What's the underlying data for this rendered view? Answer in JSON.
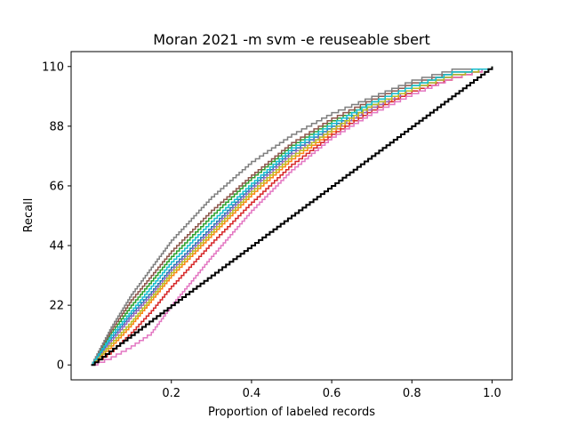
{
  "chart_data": {
    "type": "line",
    "title": "Moran 2021 -m svm -e reuseable sbert",
    "xlabel": "Proportion of labeled records",
    "ylabel": "Recall",
    "xlim": [
      -0.05,
      1.05
    ],
    "ylim": [
      -5.5,
      115.5
    ],
    "x_ticks": [
      0.2,
      0.4,
      0.6,
      0.8,
      1.0
    ],
    "x_tick_labels": [
      "0.2",
      "0.4",
      "0.6",
      "0.8",
      "1.0"
    ],
    "y_ticks": [
      0,
      22,
      44,
      66,
      88,
      110
    ],
    "y_tick_labels": [
      "0",
      "22",
      "44",
      "66",
      "88",
      "110"
    ],
    "grid": false,
    "legend": "none",
    "total_relevant": 110,
    "random_baseline": {
      "color": "#000000",
      "x": [
        0.0,
        0.1,
        0.2,
        0.3,
        0.4,
        0.5,
        0.6,
        0.7,
        0.8,
        0.9,
        1.0
      ],
      "y": [
        0,
        11,
        22,
        33,
        44,
        55,
        66,
        77,
        88,
        99,
        110
      ]
    },
    "series": [
      {
        "color": "#1f77b4",
        "x": [
          0,
          0.05,
          0.1,
          0.15,
          0.2,
          0.3,
          0.4,
          0.5,
          0.6,
          0.7,
          0.8,
          0.9,
          1.0
        ],
        "y": [
          0,
          10,
          19,
          27,
          36,
          51,
          66,
          79,
          88,
          96,
          102,
          107,
          110
        ]
      },
      {
        "color": "#ff7f0e",
        "x": [
          0,
          0.05,
          0.1,
          0.15,
          0.2,
          0.3,
          0.4,
          0.5,
          0.6,
          0.7,
          0.8,
          0.9,
          1.0
        ],
        "y": [
          0,
          7,
          15,
          24,
          33,
          48,
          63,
          76,
          86,
          95,
          101,
          106,
          110
        ]
      },
      {
        "color": "#2ca02c",
        "x": [
          0,
          0.05,
          0.1,
          0.15,
          0.2,
          0.3,
          0.4,
          0.5,
          0.6,
          0.7,
          0.8,
          0.9,
          1.0
        ],
        "y": [
          0,
          12,
          22,
          31,
          40,
          55,
          69,
          81,
          90,
          97,
          103,
          108,
          110
        ]
      },
      {
        "color": "#d62728",
        "x": [
          0,
          0.05,
          0.1,
          0.15,
          0.2,
          0.3,
          0.4,
          0.5,
          0.6,
          0.7,
          0.8,
          0.9,
          1.0
        ],
        "y": [
          0,
          5,
          12,
          20,
          29,
          45,
          60,
          74,
          85,
          94,
          101,
          106,
          110
        ]
      },
      {
        "color": "#9467bd",
        "x": [
          0,
          0.05,
          0.1,
          0.15,
          0.2,
          0.3,
          0.4,
          0.5,
          0.6,
          0.7,
          0.8,
          0.9,
          1.0
        ],
        "y": [
          0,
          9,
          18,
          26,
          35,
          50,
          65,
          78,
          87,
          95,
          102,
          107,
          110
        ]
      },
      {
        "color": "#8c564b",
        "x": [
          0,
          0.05,
          0.1,
          0.15,
          0.2,
          0.3,
          0.4,
          0.5,
          0.6,
          0.7,
          0.8,
          0.9,
          1.0
        ],
        "y": [
          0,
          13,
          24,
          33,
          42,
          57,
          70,
          82,
          91,
          98,
          104,
          108,
          110
        ]
      },
      {
        "color": "#e377c2",
        "x": [
          0,
          0.05,
          0.1,
          0.15,
          0.2,
          0.3,
          0.4,
          0.5,
          0.6,
          0.7,
          0.8,
          0.9,
          1.0
        ],
        "y": [
          0,
          3,
          7,
          12,
          22,
          40,
          57,
          72,
          84,
          93,
          100,
          106,
          110
        ]
      },
      {
        "color": "#7f7f7f",
        "x": [
          0,
          0.05,
          0.1,
          0.15,
          0.2,
          0.3,
          0.4,
          0.5,
          0.6,
          0.7,
          0.8,
          0.9,
          1.0
        ],
        "y": [
          0,
          14,
          26,
          36,
          46,
          62,
          75,
          85,
          93,
          99,
          105,
          109,
          110
        ]
      },
      {
        "color": "#bcbd22",
        "x": [
          0,
          0.05,
          0.1,
          0.15,
          0.2,
          0.3,
          0.4,
          0.5,
          0.6,
          0.7,
          0.8,
          0.9,
          1.0
        ],
        "y": [
          0,
          8,
          16,
          25,
          34,
          49,
          64,
          77,
          87,
          96,
          102,
          107,
          110
        ]
      },
      {
        "color": "#17becf",
        "x": [
          0,
          0.05,
          0.1,
          0.15,
          0.2,
          0.3,
          0.4,
          0.5,
          0.6,
          0.7,
          0.8,
          0.9,
          1.0
        ],
        "y": [
          0,
          11,
          20,
          29,
          38,
          53,
          67,
          80,
          89,
          97,
          103,
          108,
          110
        ]
      }
    ]
  }
}
